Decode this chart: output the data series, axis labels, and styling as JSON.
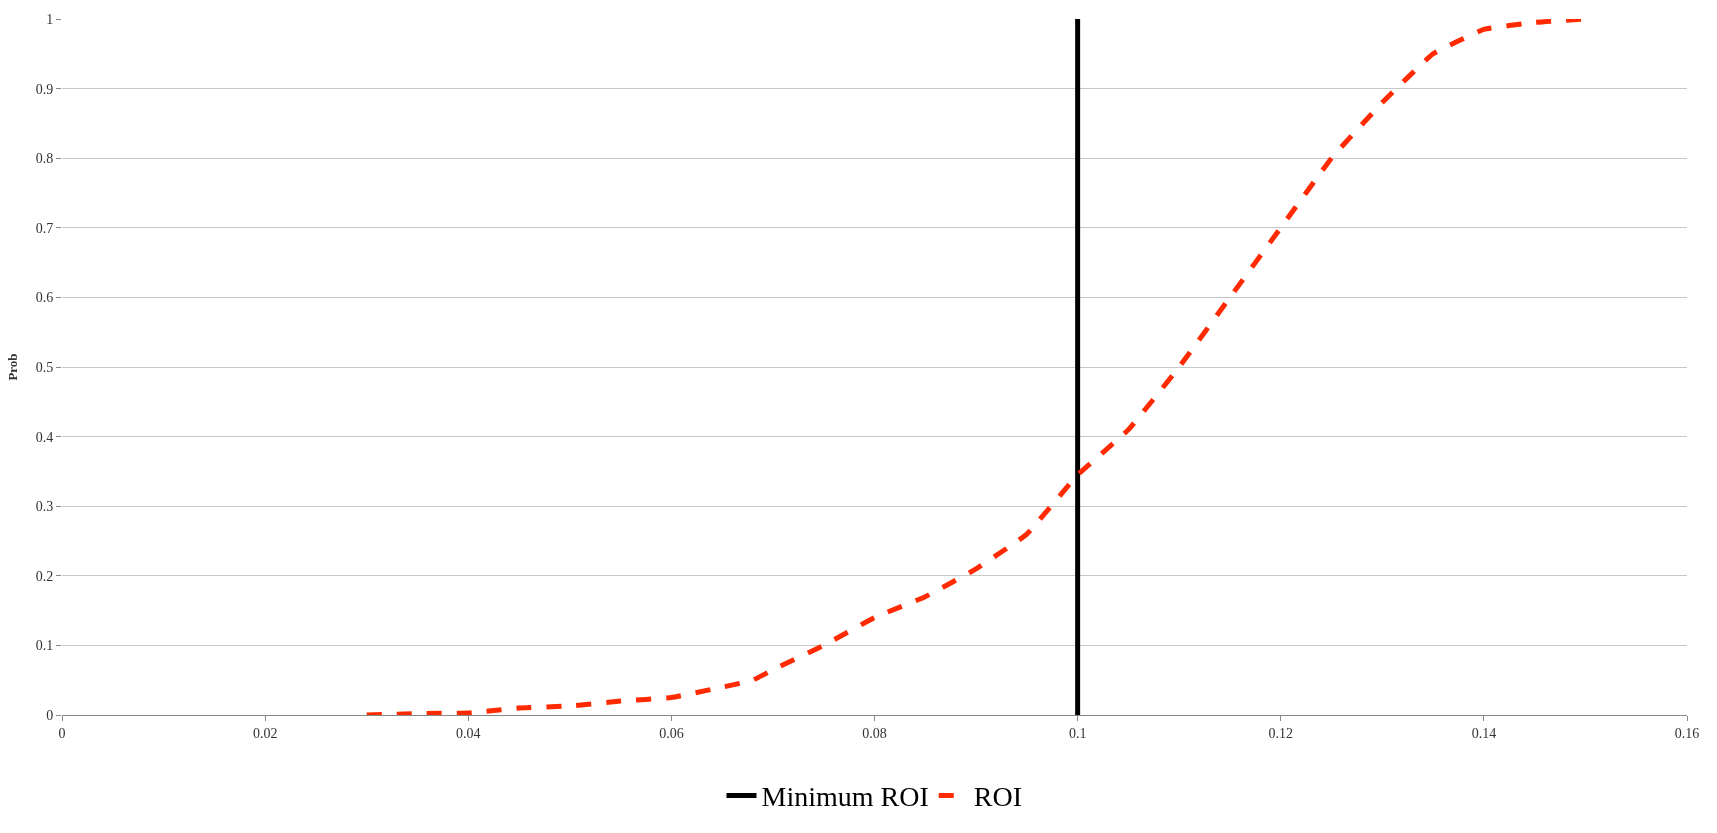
{
  "chart_data": {
    "type": "line",
    "ylabel": "Prob",
    "xlim": [
      0,
      0.16
    ],
    "xticks": [
      0,
      0.02,
      0.04,
      0.06,
      0.08,
      0.1,
      0.12,
      0.14,
      0.16
    ],
    "ylim": [
      0,
      1
    ],
    "yticks": [
      0,
      0.1,
      0.2,
      0.3,
      0.4,
      0.5,
      0.6,
      0.7,
      0.8,
      0.9,
      1
    ],
    "grid": "y",
    "legend": "bottom",
    "series": [
      {
        "name": "Minimum ROI",
        "color": "#000000",
        "line_style": "solid",
        "x": [
          0.1,
          0.1
        ],
        "values": [
          0,
          1
        ]
      },
      {
        "name": "ROI",
        "color": "#ff2a00",
        "line_style": "dashed",
        "x": [
          0.03,
          0.035,
          0.04,
          0.045,
          0.05,
          0.055,
          0.06,
          0.065,
          0.068,
          0.07,
          0.075,
          0.08,
          0.085,
          0.09,
          0.095,
          0.1,
          0.105,
          0.11,
          0.115,
          0.12,
          0.125,
          0.13,
          0.135,
          0.14,
          0.145,
          0.15
        ],
        "values": [
          0,
          0.002,
          0.003,
          0.01,
          0.013,
          0.02,
          0.025,
          0.04,
          0.05,
          0.065,
          0.1,
          0.14,
          0.17,
          0.21,
          0.26,
          0.345,
          0.41,
          0.5,
          0.6,
          0.7,
          0.8,
          0.88,
          0.95,
          0.985,
          0.995,
          1.0
        ]
      }
    ]
  }
}
